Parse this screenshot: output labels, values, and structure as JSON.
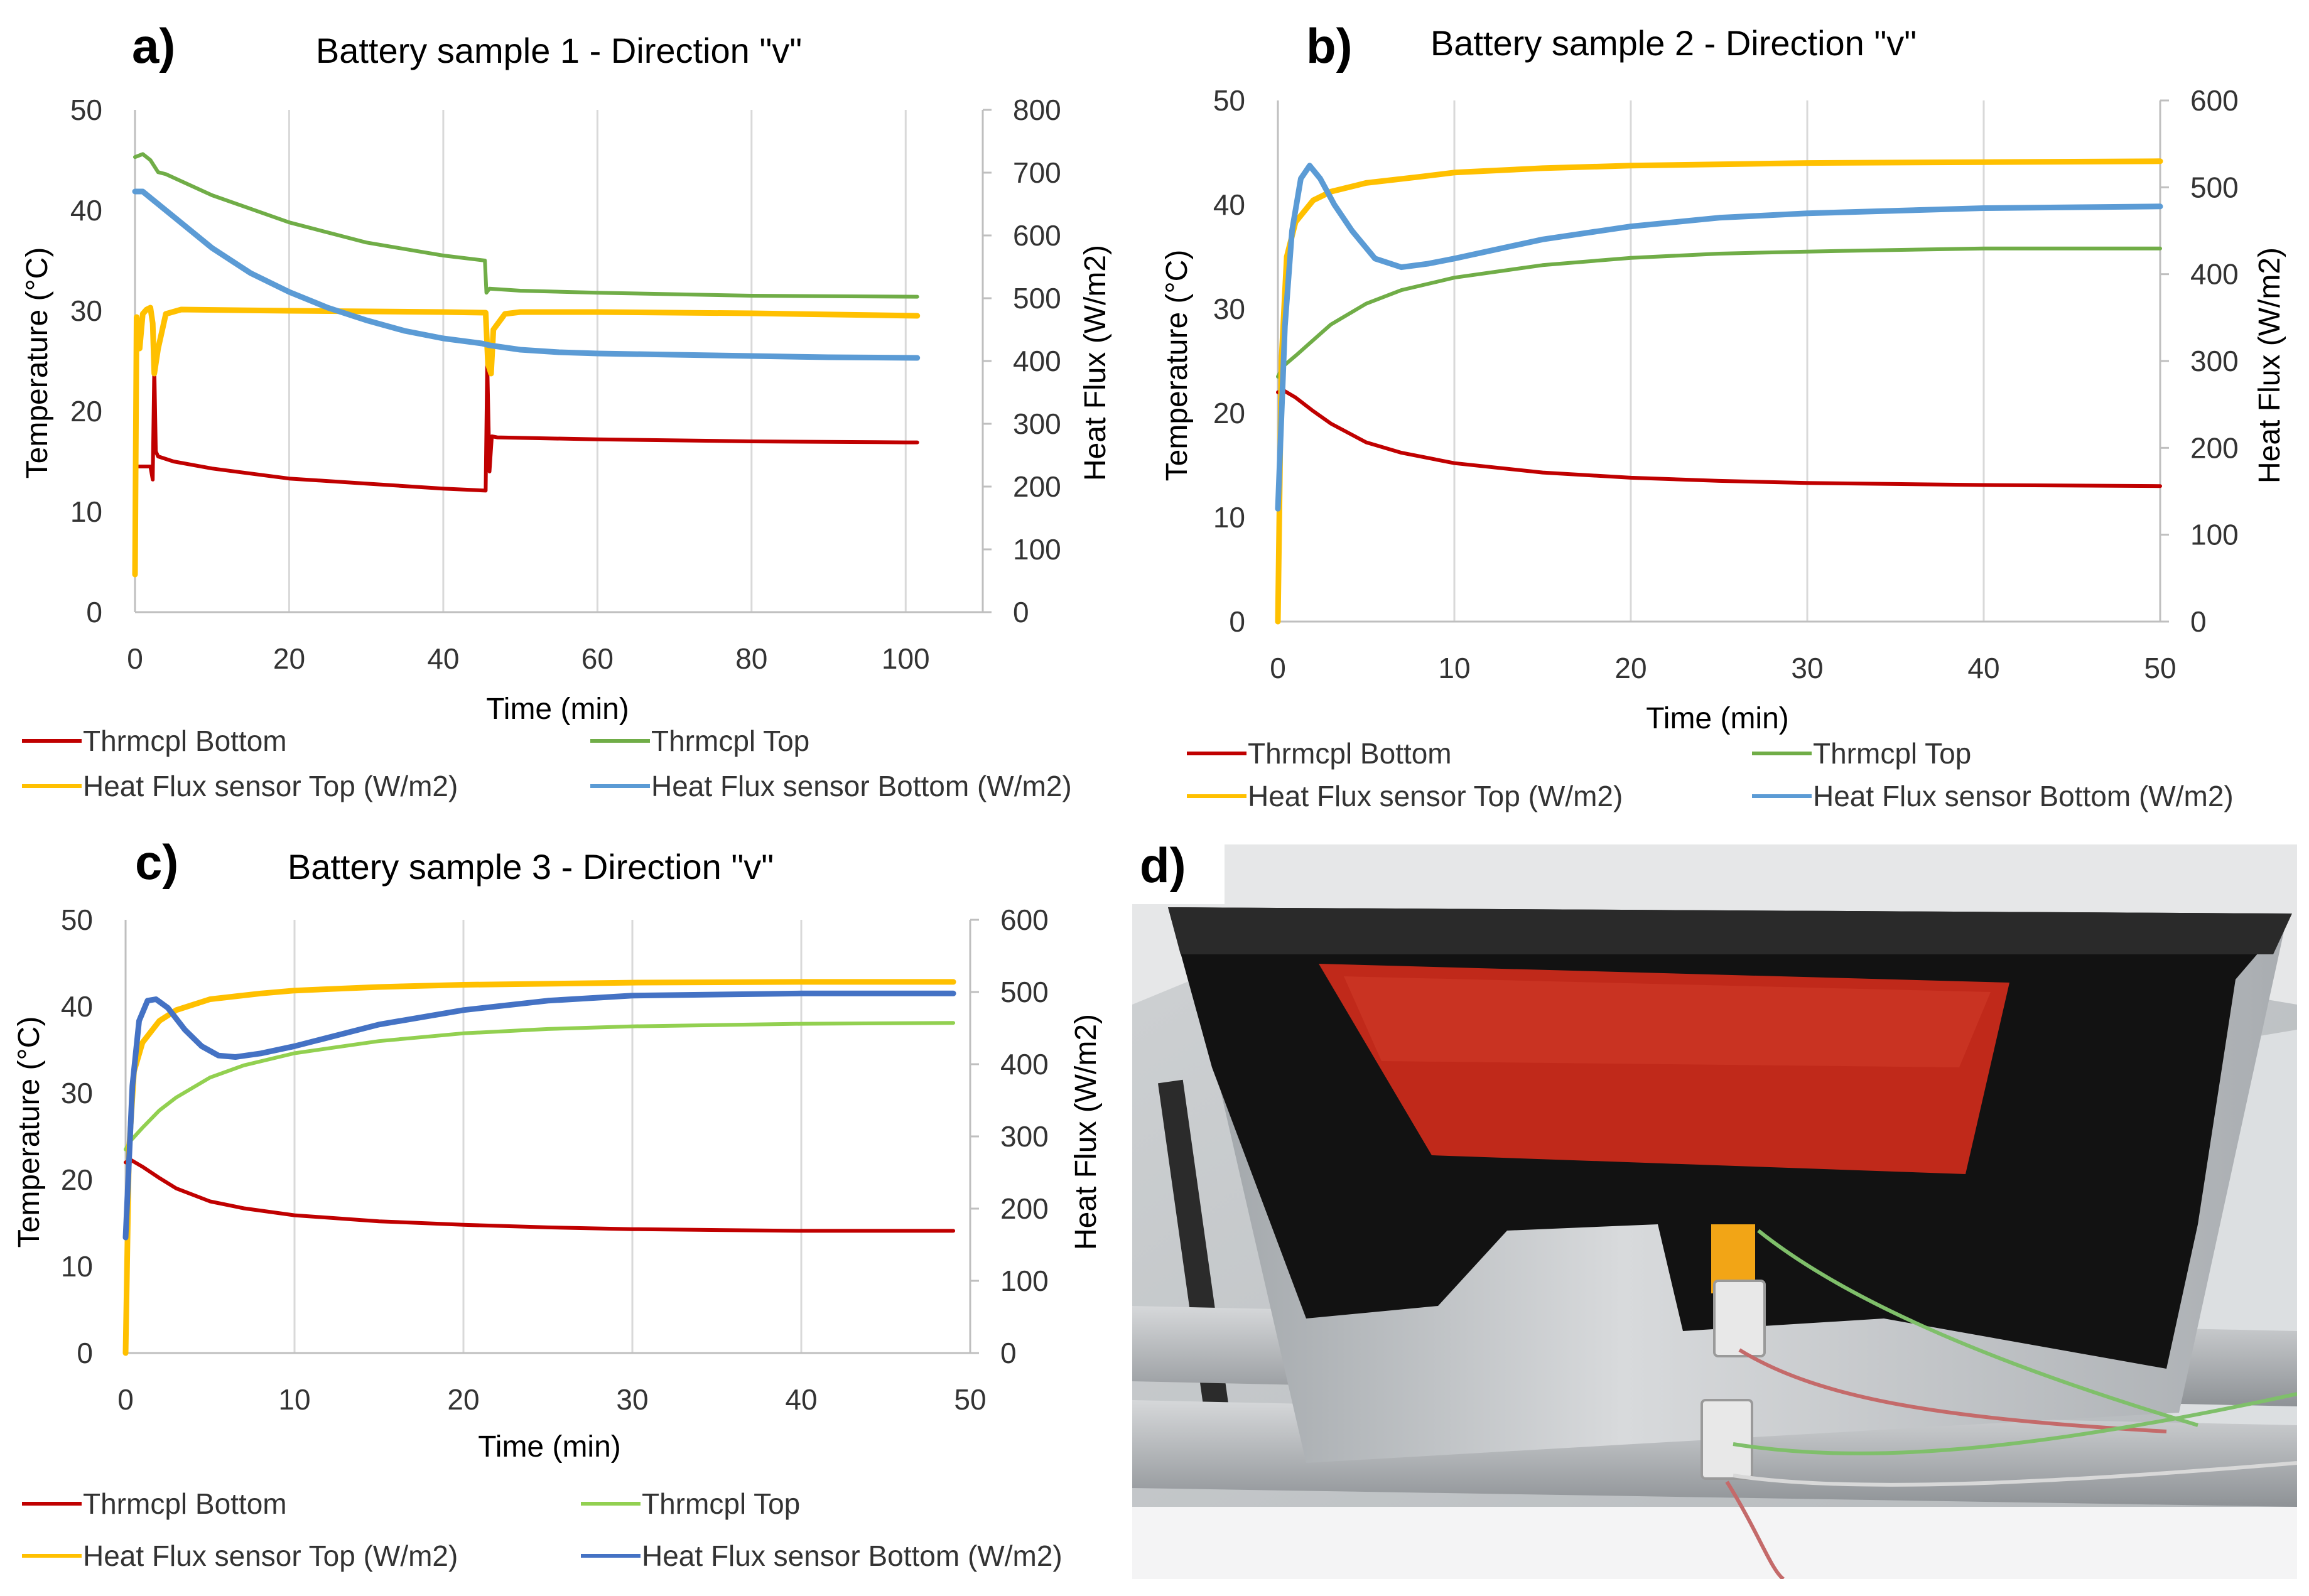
{
  "figure": {
    "panel_d_label": "d)"
  },
  "colors": {
    "bottom": "#c00000",
    "top_green": "#70ad47",
    "top_green_c": "#92d050",
    "flux_top": "#ffc000",
    "flux_bottom": "#5b9bd5",
    "flux_bottom_c": "#4472c4",
    "grid": "#d9d9d9"
  },
  "chart_data": [
    {
      "id": "a",
      "panel_label": "a)",
      "type": "line",
      "title": "Battery sample 1 - Direction \"v\"",
      "xlabel": "Time (min)",
      "ylabel": "Temperature (°C)",
      "y2label": "Heat Flux (W/m2)",
      "xlim": [
        0,
        110
      ],
      "xticks": [
        0,
        20,
        40,
        60,
        80,
        100
      ],
      "ylim": [
        0,
        50
      ],
      "yticks": [
        0,
        10,
        20,
        30,
        40,
        50
      ],
      "y2lim": [
        0,
        800
      ],
      "y2ticks": [
        0,
        100,
        200,
        300,
        400,
        500,
        600,
        700,
        800
      ],
      "grid": "vertical",
      "legend": "bottom",
      "series": [
        {
          "name": "Thrmcpl Bottom",
          "axis": "left",
          "color_key": "bottom",
          "x": [
            0,
            0.3,
            2,
            2.3,
            2.5,
            2.7,
            3,
            5,
            10,
            20,
            30,
            40,
            45.5,
            45.7,
            46,
            46.3,
            47,
            60,
            80,
            100,
            101.5
          ],
          "y": [
            14.8,
            14.5,
            14.5,
            13.2,
            24.5,
            16,
            15.5,
            15,
            14.3,
            13.3,
            12.8,
            12.3,
            12.1,
            25,
            14,
            17.5,
            17.4,
            17.2,
            17.0,
            16.9,
            16.9
          ]
        },
        {
          "name": "Thrmcpl Top",
          "axis": "left",
          "color_key": "top_green",
          "x": [
            0,
            1,
            2,
            3,
            4,
            10,
            20,
            30,
            40,
            45.4,
            45.6,
            46,
            50,
            60,
            80,
            101.5
          ],
          "y": [
            45.3,
            45.6,
            45,
            43.8,
            43.6,
            41.5,
            38.8,
            36.8,
            35.5,
            35.0,
            31.8,
            32.2,
            32,
            31.8,
            31.5,
            31.4
          ]
        },
        {
          "name": "Heat Flux sensor Top (W/m2)",
          "axis": "right",
          "color_key": "flux_top",
          "x": [
            0,
            0.2,
            0.6,
            1,
            1.5,
            2,
            2.3,
            2.5,
            3,
            4,
            6,
            20,
            40,
            45.5,
            45.8,
            46.2,
            46.5,
            48,
            50,
            60,
            80,
            101.5
          ],
          "y": [
            60,
            470,
            420,
            475,
            482,
            485,
            460,
            380,
            420,
            475,
            482,
            480,
            478,
            477,
            395,
            380,
            450,
            475,
            478,
            478,
            476,
            472
          ]
        },
        {
          "name": "Heat Flux sensor Bottom (W/m2)",
          "axis": "right",
          "color_key": "flux_bottom",
          "x": [
            0,
            1,
            2,
            5,
            10,
            15,
            20,
            25,
            30,
            35,
            40,
            45,
            46,
            50,
            55,
            60,
            70,
            80,
            90,
            101.5
          ],
          "y": [
            670,
            670,
            660,
            630,
            580,
            540,
            510,
            485,
            465,
            448,
            436,
            428,
            425,
            418,
            414,
            412,
            410,
            408,
            406,
            405
          ]
        }
      ]
    },
    {
      "id": "b",
      "panel_label": "b)",
      "type": "line",
      "title": "Battery sample 2 - Direction \"v\"",
      "xlabel": "Time (min)",
      "ylabel": "Temperature (°C)",
      "y2label": "Heat Flux (W/m2)",
      "xlim": [
        0,
        50
      ],
      "xticks": [
        0,
        10,
        20,
        30,
        40,
        50
      ],
      "ylim": [
        0,
        50
      ],
      "yticks": [
        0,
        10,
        20,
        30,
        40,
        50
      ],
      "y2lim": [
        0,
        600
      ],
      "y2ticks": [
        0,
        100,
        200,
        300,
        400,
        500,
        600
      ],
      "grid": "vertical",
      "legend": "bottom",
      "series": [
        {
          "name": "Thrmcpl Bottom",
          "axis": "left",
          "color_key": "bottom",
          "x": [
            0,
            0.3,
            1,
            2,
            3,
            5,
            7,
            10,
            15,
            20,
            25,
            30,
            40,
            50
          ],
          "y": [
            22,
            22.2,
            21.5,
            20.2,
            19,
            17.2,
            16.2,
            15.2,
            14.3,
            13.8,
            13.5,
            13.3,
            13.1,
            13
          ]
        },
        {
          "name": "Thrmcpl Top",
          "axis": "left",
          "color_key": "top_green",
          "x": [
            0,
            0.3,
            1,
            2,
            3,
            5,
            7,
            10,
            15,
            20,
            25,
            30,
            40,
            50
          ],
          "y": [
            23.5,
            24.5,
            25.5,
            27,
            28.5,
            30.5,
            31.8,
            33,
            34.2,
            34.9,
            35.3,
            35.5,
            35.8,
            35.8
          ]
        },
        {
          "name": "Heat Flux sensor Top (W/m2)",
          "axis": "right",
          "color_key": "flux_top",
          "x": [
            0,
            0.2,
            0.5,
            1,
            2,
            3,
            5,
            8,
            10,
            15,
            20,
            30,
            40,
            50
          ],
          "y": [
            0,
            300,
            420,
            460,
            485,
            495,
            505,
            512,
            517,
            522,
            525,
            528,
            529,
            530
          ]
        },
        {
          "name": "Heat Flux sensor Bottom (W/m2)",
          "axis": "right",
          "color_key": "flux_bottom",
          "x": [
            0,
            0.4,
            0.8,
            1.3,
            1.8,
            2.4,
            3.2,
            4.2,
            5.5,
            7,
            8.5,
            10,
            15,
            20,
            25,
            30,
            40,
            50
          ],
          "y": [
            130,
            340,
            450,
            510,
            525,
            510,
            480,
            450,
            418,
            408,
            412,
            418,
            440,
            455,
            465,
            470,
            476,
            478
          ]
        }
      ]
    },
    {
      "id": "c",
      "panel_label": "c)",
      "type": "line",
      "title": "Battery sample 3 - Direction \"v\"",
      "xlabel": "Time (min)",
      "ylabel": "Temperature (°C)",
      "y2label": "Heat Flux (W/m2)",
      "xlim": [
        0,
        50
      ],
      "xticks": [
        0,
        10,
        20,
        30,
        40,
        50
      ],
      "ylim": [
        0,
        50
      ],
      "yticks": [
        0,
        10,
        20,
        30,
        40,
        50
      ],
      "y2lim": [
        0,
        600
      ],
      "y2ticks": [
        0,
        100,
        200,
        300,
        400,
        500,
        600
      ],
      "grid": "vertical",
      "legend": "bottom",
      "series": [
        {
          "name": "Thrmcpl Bottom",
          "axis": "left",
          "color_key": "bottom",
          "x": [
            0,
            0.3,
            1,
            2,
            3,
            5,
            7,
            10,
            15,
            20,
            25,
            30,
            40,
            49
          ],
          "y": [
            22,
            22.3,
            21.5,
            20.2,
            19,
            17.5,
            16.7,
            15.9,
            15.2,
            14.8,
            14.5,
            14.3,
            14.1,
            14.1
          ]
        },
        {
          "name": "Thrmcpl Top",
          "axis": "left",
          "color_key": "top_green_c",
          "x": [
            0,
            0.3,
            1,
            2,
            3,
            5,
            7,
            10,
            15,
            20,
            25,
            30,
            40,
            49
          ],
          "y": [
            23.5,
            24.5,
            26,
            28,
            29.5,
            31.8,
            33.2,
            34.6,
            36,
            36.9,
            37.4,
            37.7,
            38,
            38.1
          ]
        },
        {
          "name": "Heat Flux sensor Top (W/m2)",
          "axis": "right",
          "color_key": "flux_top",
          "x": [
            0,
            0.2,
            0.5,
            1,
            2,
            3,
            5,
            8,
            10,
            15,
            20,
            30,
            40,
            49
          ],
          "y": [
            0,
            280,
            390,
            430,
            460,
            475,
            490,
            498,
            502,
            507,
            510,
            513,
            514,
            514
          ]
        },
        {
          "name": "Heat Flux sensor Bottom (W/m2)",
          "axis": "right",
          "color_key": "flux_bottom_c",
          "x": [
            0,
            0.4,
            0.8,
            1.3,
            1.8,
            2.5,
            3.5,
            4.5,
            5.5,
            6.5,
            8,
            10,
            15,
            20,
            25,
            30,
            40,
            49
          ],
          "y": [
            160,
            370,
            460,
            488,
            490,
            478,
            448,
            425,
            412,
            410,
            415,
            425,
            455,
            475,
            488,
            495,
            498,
            498
          ]
        }
      ]
    }
  ]
}
